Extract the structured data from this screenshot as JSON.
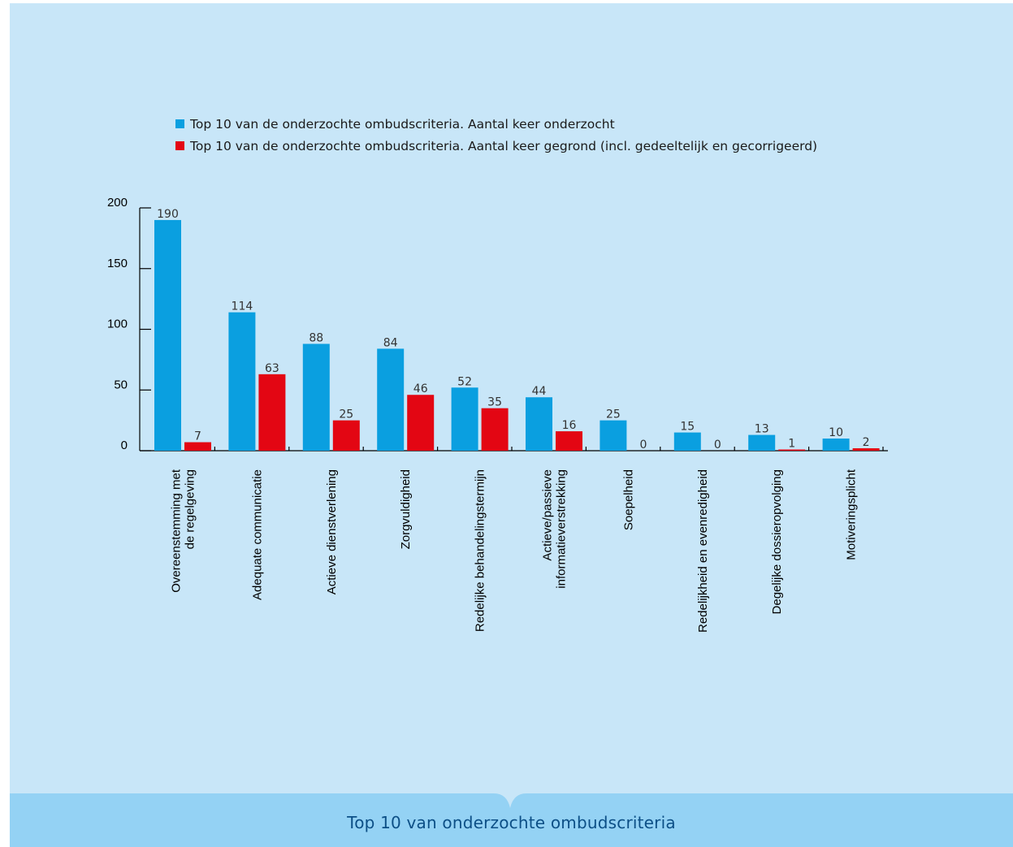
{
  "caption": "Top 10 van onderzochte ombudscriteria",
  "chart_data": {
    "type": "bar",
    "title": "",
    "xlabel": "",
    "ylabel": "",
    "ylim": [
      0,
      200
    ],
    "yticks": [
      0,
      50,
      100,
      150,
      200
    ],
    "grid": false,
    "legend_position": "top",
    "categories": [
      [
        "Overeenstemming met",
        "de regelgeving"
      ],
      [
        "Adequate communicatie"
      ],
      [
        "Actieve dienstverlening"
      ],
      [
        "Zorgvuldigheid"
      ],
      [
        "Redelijke behandelingstermijn"
      ],
      [
        "Actieve/passieve",
        "informatieverstrekking"
      ],
      [
        "Soepelheid"
      ],
      [
        "Redelijkheid en evenredigheid"
      ],
      [
        "Degelijke dossieropvolging"
      ],
      [
        "Motiveringsplicht"
      ]
    ],
    "series": [
      {
        "name": "Top 10 van de onderzochte ombudscriteria. Aantal keer onderzocht",
        "color": "#0a9fe0",
        "values": [
          190,
          114,
          88,
          84,
          52,
          44,
          25,
          15,
          13,
          10
        ]
      },
      {
        "name": "Top 10 van de onderzochte ombudscriteria. Aantal keer gegrond (incl. gedeeltelijk en gecorrigeerd)",
        "color": "#e30613",
        "values": [
          7,
          63,
          25,
          46,
          35,
          16,
          0,
          0,
          1,
          2
        ]
      }
    ]
  }
}
